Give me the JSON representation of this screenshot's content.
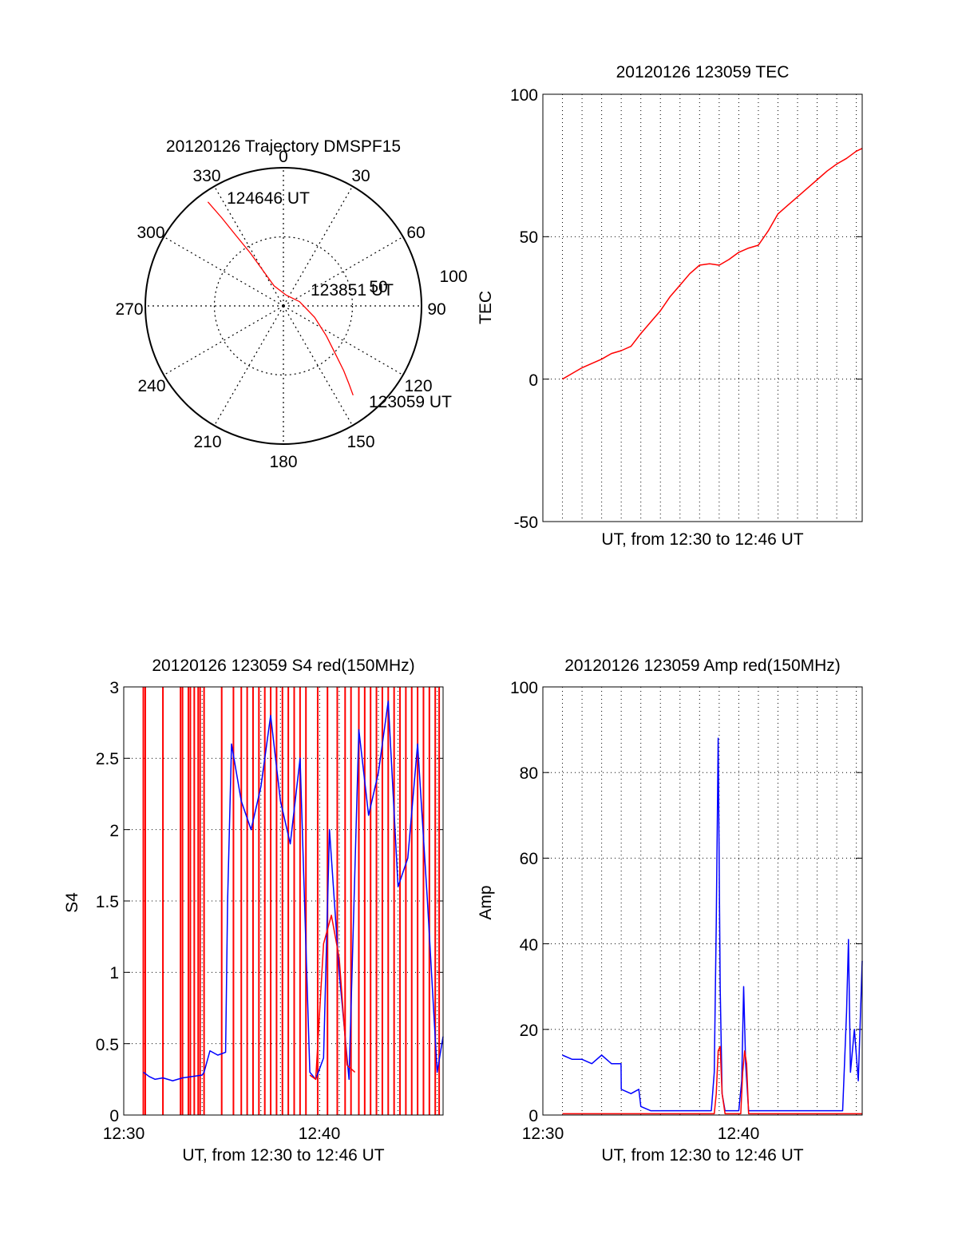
{
  "colors": {
    "red": "#ff0000",
    "blue": "#0000ff",
    "axis": "#000000",
    "grid": "#000000",
    "background": "#ffffff"
  },
  "chart_data": [
    {
      "id": "trajectory",
      "type": "polar",
      "title": "20120126 Trajectory DMSPF15",
      "angle_labels": [
        "0",
        "30",
        "60",
        "90",
        "120",
        "150",
        "180",
        "210",
        "240",
        "270",
        "300",
        "330"
      ],
      "angles_deg": [
        0,
        30,
        60,
        90,
        120,
        150,
        180,
        210,
        240,
        270,
        300,
        330
      ],
      "radius_labels": [
        "50",
        "100"
      ],
      "radius_values": [
        50,
        100
      ],
      "rlim": [
        0,
        100
      ],
      "grid": true,
      "series": [
        {
          "color": "#ff0000",
          "points": [
            {
              "az": 142,
              "r": 82
            },
            {
              "az": 140,
              "r": 74
            },
            {
              "az": 137,
              "r": 64
            },
            {
              "az": 133,
              "r": 52
            },
            {
              "az": 125,
              "r": 38
            },
            {
              "az": 110,
              "r": 24
            },
            {
              "az": 75,
              "r": 12
            },
            {
              "az": 15,
              "r": 8
            },
            {
              "az": 335,
              "r": 16
            },
            {
              "az": 330,
              "r": 30
            },
            {
              "az": 328,
              "r": 45
            },
            {
              "az": 326,
              "r": 62
            },
            {
              "az": 325,
              "r": 78
            },
            {
              "az": 324,
              "r": 93
            }
          ]
        }
      ],
      "annotations": [
        {
          "text": "124646 UT",
          "az": 333,
          "r": 82
        },
        {
          "text": "123851 UT",
          "az": 76,
          "r": 43
        },
        {
          "text": "123059 UT",
          "az": 134,
          "r": 103
        }
      ]
    },
    {
      "id": "tec",
      "type": "line",
      "title": "20120126 123059 TEC",
      "xlabel": "UT, from 12:30 to 12:46 UT",
      "ylabel": "TEC",
      "xlim": [
        0,
        16.3
      ],
      "ylim": [
        -50,
        100
      ],
      "yticks": [
        -50,
        0,
        50,
        100
      ],
      "ytick_labels": [
        "-50",
        "0",
        "50",
        "100"
      ],
      "grid": true,
      "series": [
        {
          "color": "#ff0000",
          "x": [
            1.0,
            1.5,
            2.0,
            2.5,
            3.0,
            3.5,
            4.0,
            4.5,
            5.0,
            5.5,
            6.0,
            6.5,
            7.0,
            7.5,
            8.0,
            8.5,
            9.0,
            9.5,
            10.0,
            10.5,
            11.0,
            11.5,
            12.0,
            12.5,
            13.0,
            13.5,
            14.0,
            14.5,
            15.0,
            15.5,
            16.0,
            16.3
          ],
          "y": [
            0,
            2,
            4,
            5.5,
            7,
            9,
            10,
            11.5,
            16,
            20,
            24,
            29,
            33,
            37,
            40,
            40.5,
            40,
            42,
            44.5,
            46,
            47,
            52,
            58,
            61,
            64,
            67,
            70,
            73,
            75.5,
            77.5,
            80,
            81
          ]
        }
      ]
    },
    {
      "id": "s4",
      "type": "line",
      "title": "20120126 123059 S4 red(150MHz)",
      "xlabel": "UT, from 12:30 to 12:46 UT",
      "ylabel": "S4",
      "xlim": [
        0,
        16.3
      ],
      "ylim": [
        0,
        3
      ],
      "yticks": [
        0,
        0.5,
        1,
        1.5,
        2,
        2.5,
        3
      ],
      "ytick_labels": [
        "0",
        "0.5",
        "1",
        "1.5",
        "2",
        "2.5",
        "3"
      ],
      "xticks": [
        0,
        10
      ],
      "xtick_labels": [
        "12:30",
        "12:40"
      ],
      "grid": true,
      "series": [
        {
          "color": "#0000ff",
          "x": [
            1.0,
            1.3,
            1.6,
            2.0,
            2.5,
            3.0,
            3.5,
            4.0,
            4.1,
            4.4,
            4.8,
            5.2,
            5.3,
            5.5,
            6.0,
            6.5,
            7.0,
            7.5,
            8.0,
            8.5,
            9.0,
            9.5,
            9.8,
            10.2,
            10.5,
            11.0,
            11.5,
            12.0,
            12.5,
            13.0,
            13.5,
            14.0,
            14.5,
            15.0,
            15.5,
            16.0,
            16.3
          ],
          "y": [
            0.3,
            0.27,
            0.25,
            0.26,
            0.24,
            0.26,
            0.27,
            0.28,
            0.3,
            0.45,
            0.42,
            0.44,
            1.5,
            2.6,
            2.2,
            2.0,
            2.3,
            2.8,
            2.2,
            1.9,
            2.5,
            0.3,
            0.25,
            0.4,
            2.0,
            1.0,
            0.25,
            2.7,
            2.1,
            2.4,
            2.9,
            1.6,
            1.8,
            2.6,
            1.5,
            0.3,
            0.55
          ]
        },
        {
          "color": "#ff0000",
          "x": [
            9.5,
            9.8,
            10.2,
            10.6,
            11.0,
            11.4,
            11.8
          ],
          "y": [
            0.28,
            0.25,
            1.2,
            1.4,
            1.1,
            0.35,
            0.3
          ]
        }
      ],
      "red_vertical_spikes_x": [
        1.0,
        1.1,
        2.0,
        2.9,
        3.0,
        3.3,
        3.4,
        3.6,
        3.8,
        3.9,
        4.1,
        5.0,
        5.6,
        6.0,
        6.3,
        6.6,
        6.9,
        7.2,
        7.5,
        7.8,
        8.1,
        8.4,
        8.7,
        9.0,
        9.3,
        9.9,
        10.4,
        10.9,
        11.3,
        11.6,
        12.0,
        12.3,
        12.6,
        12.9,
        13.2,
        13.5,
        13.8,
        14.1,
        14.4,
        14.7,
        15.0,
        15.3,
        15.6,
        15.9,
        16.1
      ]
    },
    {
      "id": "amp",
      "type": "line",
      "title": "20120126 123059 Amp red(150MHz)",
      "xlabel": "UT, from 12:30 to 12:46 UT",
      "ylabel": "Amp",
      "xlim": [
        0,
        16.3
      ],
      "ylim": [
        0,
        100
      ],
      "yticks": [
        0,
        20,
        40,
        60,
        80,
        100
      ],
      "ytick_labels": [
        "0",
        "20",
        "40",
        "60",
        "80",
        "100"
      ],
      "xticks": [
        0,
        10
      ],
      "xtick_labels": [
        "12:30",
        "12:40"
      ],
      "grid": true,
      "series": [
        {
          "color": "#0000ff",
          "x": [
            1.0,
            1.5,
            2.0,
            2.5,
            3.0,
            3.5,
            3.99,
            4.0,
            4.5,
            4.9,
            5.0,
            5.5,
            6.0,
            7.0,
            8.0,
            8.6,
            8.75,
            8.85,
            8.95,
            9.05,
            9.15,
            9.3,
            9.5,
            10.0,
            10.15,
            10.25,
            10.35,
            10.5,
            10.7,
            11.0,
            12.0,
            13.0,
            14.0,
            15.0,
            15.3,
            15.5,
            15.6,
            15.7,
            15.9,
            16.1,
            16.3
          ],
          "y": [
            14,
            13,
            13,
            12,
            14,
            12,
            12,
            6,
            5,
            6,
            2,
            1,
            1,
            1,
            1,
            1,
            10,
            45,
            88,
            30,
            5,
            1,
            1,
            1,
            8,
            30,
            12,
            1,
            1,
            1,
            1,
            1,
            1,
            1,
            1,
            24,
            41,
            10,
            20,
            8,
            36
          ]
        },
        {
          "color": "#ff0000",
          "x": [
            1.0,
            4.0,
            8.0,
            8.75,
            8.85,
            8.95,
            9.05,
            9.15,
            9.3,
            10.1,
            10.2,
            10.3,
            10.4,
            10.5,
            15.0,
            16.0,
            16.3
          ],
          "y": [
            0.3,
            0.3,
            0.3,
            0.3,
            5,
            15,
            16,
            5,
            0.3,
            0.3,
            10,
            15,
            12,
            0.3,
            0.3,
            0.3,
            0.3
          ]
        }
      ]
    }
  ]
}
